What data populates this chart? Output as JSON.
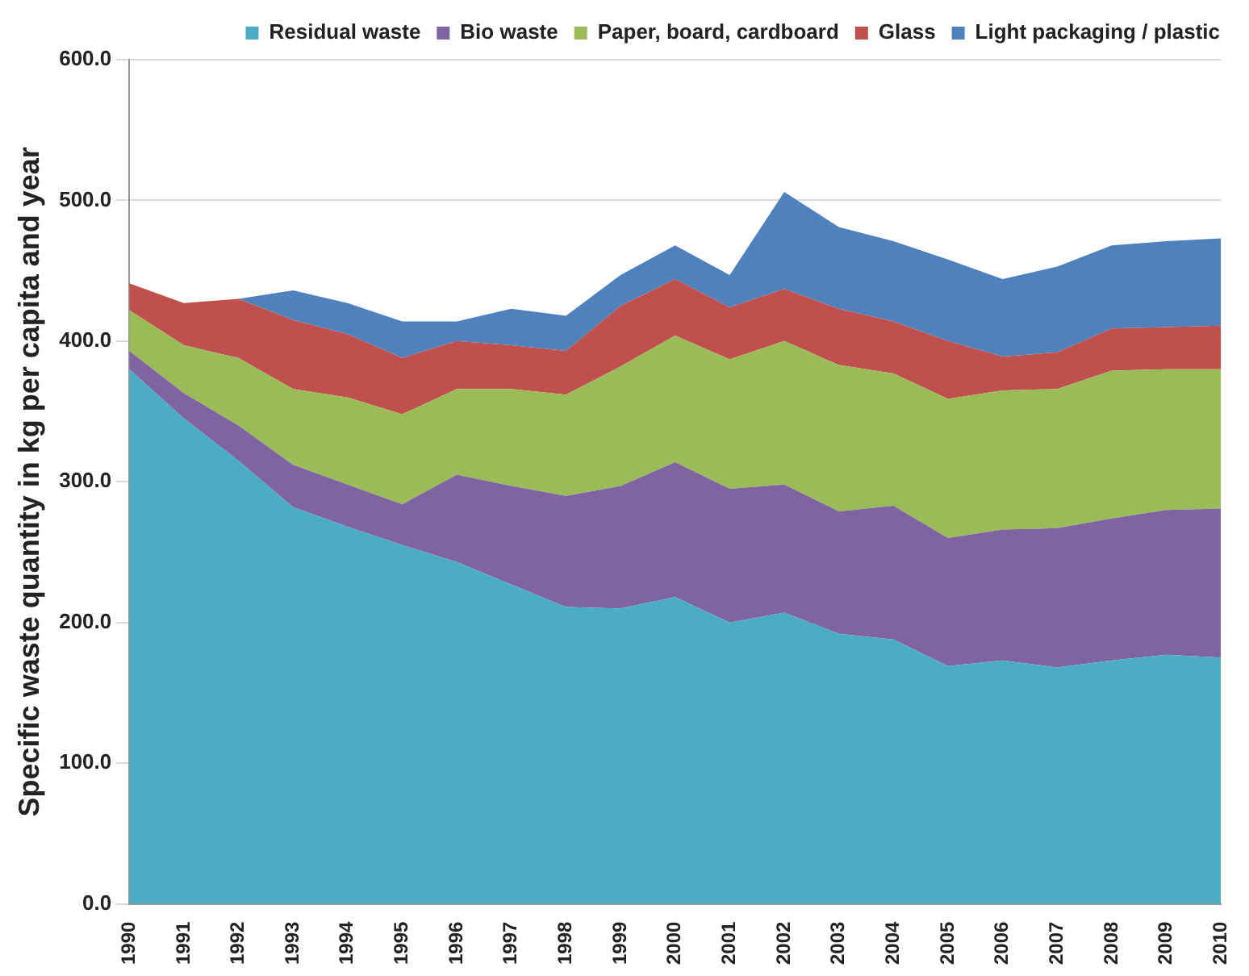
{
  "chart_data": {
    "type": "area",
    "stacked": true,
    "ylabel": "Specific waste quantity in kg per capita and year",
    "categories": [
      "1990",
      "1991",
      "1992",
      "1993",
      "1994",
      "1995",
      "1996",
      "1997",
      "1998",
      "1999",
      "2000",
      "2001",
      "2002",
      "2003",
      "2004",
      "2005",
      "2006",
      "2007",
      "2008",
      "2009",
      "2010"
    ],
    "series": [
      {
        "name": "Residual waste",
        "color": "#4bacc6",
        "values": [
          380,
          345,
          315,
          282,
          268,
          255,
          243,
          227,
          211,
          210,
          218,
          200,
          207,
          192,
          188,
          169,
          173,
          168,
          173,
          177,
          175
        ]
      },
      {
        "name": "Bio waste",
        "color": "#8064a2",
        "values": [
          13,
          18,
          25,
          30,
          30,
          29,
          62,
          70,
          79,
          87,
          96,
          95,
          91,
          87,
          95,
          91,
          93,
          99,
          101,
          103,
          106
        ]
      },
      {
        "name": "Paper, board, cardboard",
        "color": "#9bbb59",
        "values": [
          29,
          34,
          48,
          54,
          62,
          64,
          61,
          69,
          72,
          85,
          90,
          92,
          102,
          104,
          94,
          99,
          99,
          99,
          105,
          100,
          99
        ]
      },
      {
        "name": "Glass",
        "color": "#c0504d",
        "values": [
          19,
          30,
          42,
          49,
          45,
          40,
          34,
          31,
          31,
          43,
          40,
          37,
          37,
          40,
          37,
          41,
          24,
          26,
          30,
          30,
          31
        ]
      },
      {
        "name": "Light packaging / plastic",
        "color": "#4f81bd",
        "values": [
          null,
          null,
          0,
          21,
          22,
          26,
          14,
          26,
          25,
          22,
          24,
          23,
          69,
          58,
          57,
          58,
          55,
          61,
          59,
          61,
          62
        ]
      }
    ],
    "ylim": [
      0,
      600
    ],
    "yticks": [
      {
        "value": 0,
        "label": "0.0"
      },
      {
        "value": 100,
        "label": "100.0"
      },
      {
        "value": 200,
        "label": "200.0"
      },
      {
        "value": 300,
        "label": "300.0"
      },
      {
        "value": 400,
        "label": "400.0"
      },
      {
        "value": 500,
        "label": "500.0"
      },
      {
        "value": 600,
        "label": "600.0"
      }
    ],
    "grid": "y",
    "legend": "top"
  }
}
